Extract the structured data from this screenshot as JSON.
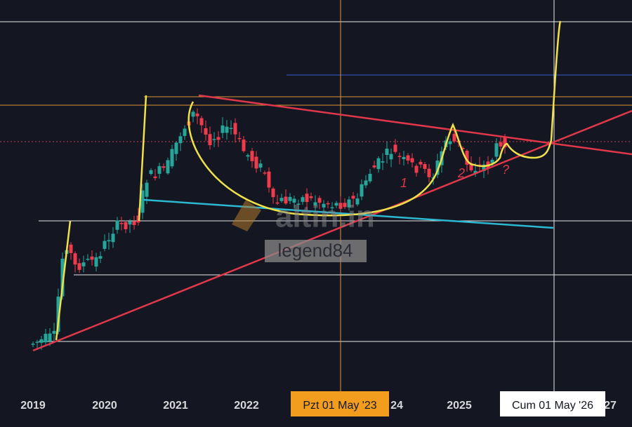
{
  "x_axis": {
    "labels": [
      "2019",
      "2020",
      "2021",
      "2022",
      "24",
      "2025",
      "27"
    ]
  },
  "crosshair": {
    "x_label": "Pzt 01 May '23",
    "cursor_label": "Cum 01 May '26"
  },
  "annotations": [
    "1",
    "2",
    "?"
  ],
  "watermark": {
    "site": "altin.in",
    "user": "legend84"
  }
}
